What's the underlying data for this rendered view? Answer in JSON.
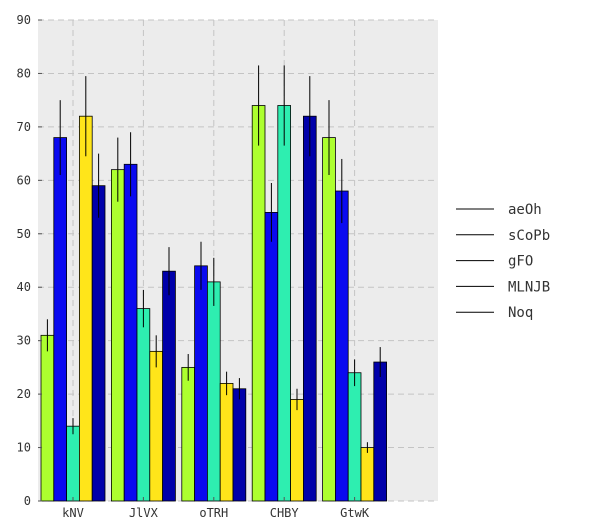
{
  "chart_data": {
    "type": "bar",
    "title": "",
    "xlabel": "",
    "ylabel": "",
    "ylim": [
      0,
      90
    ],
    "yticks": [
      0,
      10,
      20,
      30,
      40,
      50,
      60,
      70,
      80,
      90
    ],
    "grid": true,
    "legend_position": "right",
    "categories": [
      "kNV",
      "JlVX",
      "oTRH",
      "CHBY",
      "GtwK"
    ],
    "series": [
      {
        "name": "aeOh",
        "color": "#adff2f",
        "values": [
          31,
          62,
          25,
          74,
          68
        ],
        "errors": [
          3,
          6,
          2.5,
          7.5,
          7
        ]
      },
      {
        "name": "sCoPb",
        "color": "#0a0af0",
        "values": [
          68,
          63,
          44,
          54,
          58
        ],
        "errors": [
          7,
          6,
          4.5,
          5.5,
          6
        ]
      },
      {
        "name": "gFO",
        "color": "#2eeeb0",
        "values": [
          14,
          36,
          41,
          74,
          24
        ],
        "errors": [
          1.5,
          3.5,
          4.5,
          7.5,
          2.5
        ]
      },
      {
        "name": "MLNJB",
        "color": "#ffe51a",
        "values": [
          72,
          28,
          22,
          19,
          10
        ],
        "errors": [
          7.5,
          3,
          2.2,
          2,
          1
        ]
      },
      {
        "name": "Noq",
        "color": "#0000aa",
        "values": [
          59,
          43,
          21,
          72,
          26
        ],
        "errors": [
          6,
          4.5,
          2,
          7.5,
          2.8
        ]
      }
    ]
  }
}
